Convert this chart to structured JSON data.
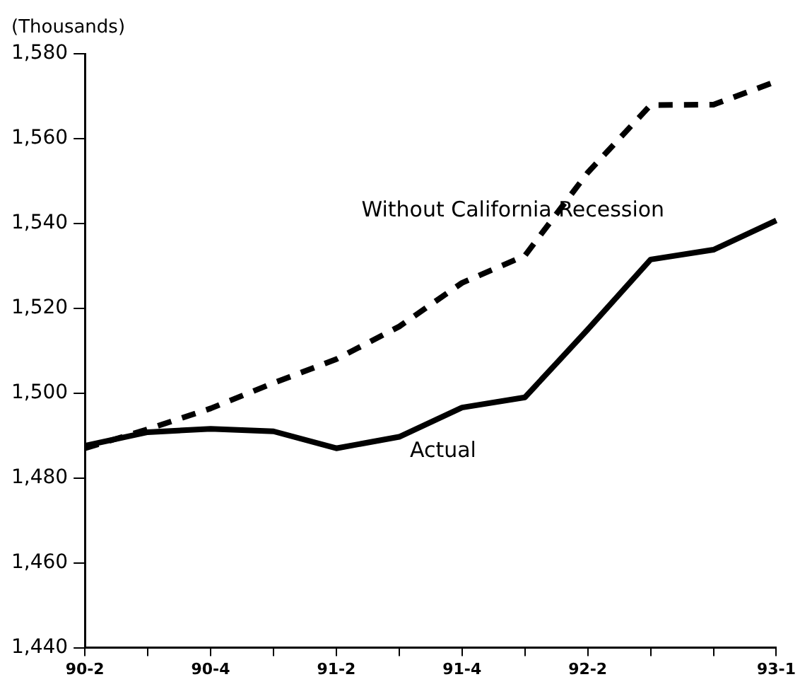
{
  "chart_data": {
    "type": "line",
    "ylabel": "(Thousands)",
    "categories": [
      "90-2",
      null,
      "90-4",
      null,
      "91-2",
      null,
      "91-4",
      null,
      "92-2",
      null,
      null,
      "93-1"
    ],
    "series": [
      {
        "name": "Without California Recession",
        "color": "#000000",
        "line_style": "dashed",
        "values": [
          1487,
          1491.5,
          1496.4,
          1502.4,
          1508,
          1515.7,
          1526,
          1532.4,
          1552,
          1567.9,
          1568,
          1573.5
        ]
      },
      {
        "name": "Actual",
        "color": "#000000",
        "line_style": "solid",
        "values": [
          1487.6,
          1490.8,
          1491.6,
          1491,
          1487,
          1489.7,
          1496.6,
          1499,
          1515,
          1531.5,
          1533.8,
          1540.7
        ]
      }
    ],
    "ylim": [
      1440,
      1580
    ],
    "yticks": [
      {
        "value": 1440,
        "label": "1,440"
      },
      {
        "value": 1460,
        "label": "1,460"
      },
      {
        "value": 1480,
        "label": "1,480"
      },
      {
        "value": 1500,
        "label": "1,500"
      },
      {
        "value": 1520,
        "label": "1,520"
      },
      {
        "value": 1540,
        "label": "1,540"
      },
      {
        "value": 1560,
        "label": "1,560"
      },
      {
        "value": 1580,
        "label": "1,580"
      }
    ],
    "grid": false,
    "legend": false,
    "marker": "none"
  }
}
